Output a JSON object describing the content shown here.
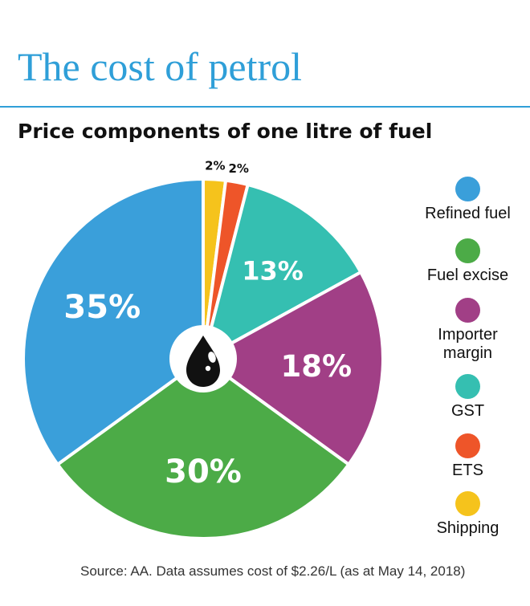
{
  "title": "The cost of petrol",
  "subtitle": "Price components of one litre of fuel",
  "source": "Source: AA. Data assumes cost of $2.26/L (as at May 14, 2018)",
  "chart_data": {
    "type": "pie",
    "title": "Price components of one litre of fuel",
    "legend_position": "right",
    "center_icon": "oil-drop-icon",
    "slices": [
      {
        "label": "Shipping",
        "value": 2,
        "display": "2%",
        "color": "#f5c31c"
      },
      {
        "label": "ETS",
        "value": 2,
        "display": "2%",
        "color": "#ee5529"
      },
      {
        "label": "GST",
        "value": 13,
        "display": "13%",
        "color": "#35bfb1"
      },
      {
        "label": "Importer margin",
        "value": 18,
        "display": "18%",
        "color": "#a13f86"
      },
      {
        "label": "Fuel excise",
        "value": 30,
        "display": "30%",
        "color": "#4cab47"
      },
      {
        "label": "Refined fuel",
        "value": 35,
        "display": "35%",
        "color": "#3a9fda"
      }
    ],
    "legend": [
      {
        "label": "Refined fuel",
        "color": "#3a9fda"
      },
      {
        "label": "Fuel excise",
        "color": "#4cab47"
      },
      {
        "label": "Importer\nmargin",
        "color": "#a13f86"
      },
      {
        "label": "GST",
        "color": "#35bfb1"
      },
      {
        "label": "ETS",
        "color": "#ee5529"
      },
      {
        "label": "Shipping",
        "color": "#f5c31c"
      }
    ]
  }
}
